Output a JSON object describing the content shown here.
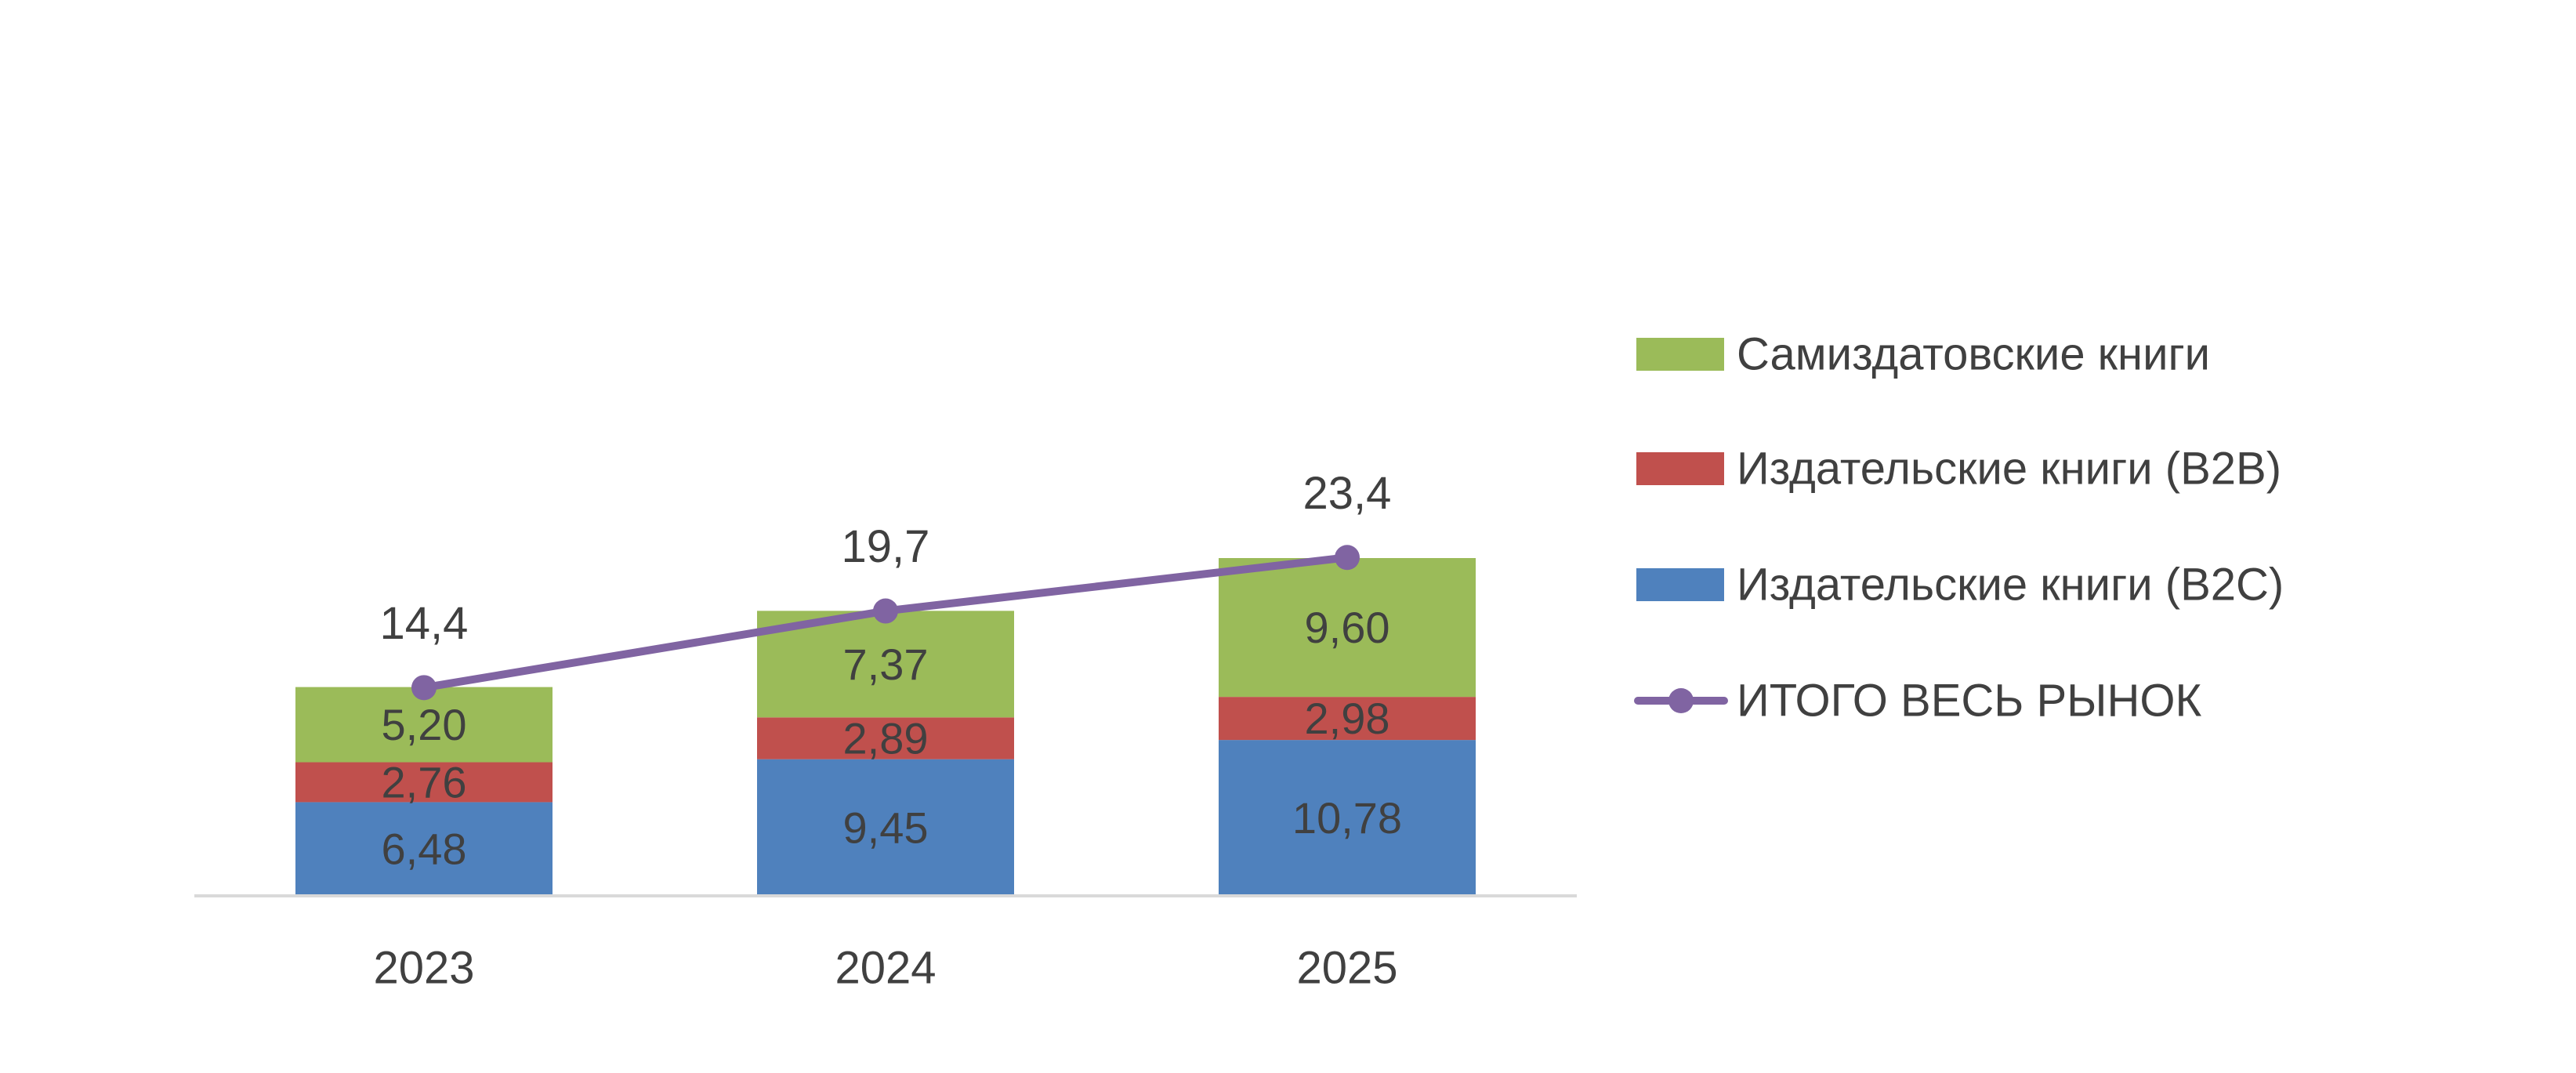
{
  "chart_data": {
    "type": "bar",
    "stacked": true,
    "categories": [
      "2023",
      "2024",
      "2025"
    ],
    "series": [
      {
        "name": "Издательские книги (B2C)",
        "values": [
          6.48,
          9.45,
          10.78
        ],
        "labels": [
          "6,48",
          "9,45",
          "10,78"
        ],
        "color": "#4f81bd"
      },
      {
        "name": "Издательские книги (B2B)",
        "values": [
          2.76,
          2.89,
          2.98
        ],
        "labels": [
          "2,76",
          "2,89",
          "2,98"
        ],
        "color": "#c0504d"
      },
      {
        "name": "Самиздатовские книги",
        "values": [
          5.2,
          7.37,
          9.6
        ],
        "labels": [
          "5,20",
          "7,37",
          "9,60"
        ],
        "color": "#9bbb59"
      }
    ],
    "line": {
      "name": "ИТОГО ВЕСЬ РЫНОК",
      "values": [
        14.4,
        19.7,
        23.4
      ],
      "labels": [
        "14,4",
        "19,7",
        "23,4"
      ],
      "color": "#8064a2"
    },
    "ylim": [
      0,
      24
    ],
    "grid": false,
    "legend_position": "right",
    "legend_order": [
      "Самиздатовские книги",
      "Издательские книги (B2B)",
      "Издательские книги (B2C)",
      "ИТОГО ВЕСЬ РЫНОК"
    ]
  }
}
